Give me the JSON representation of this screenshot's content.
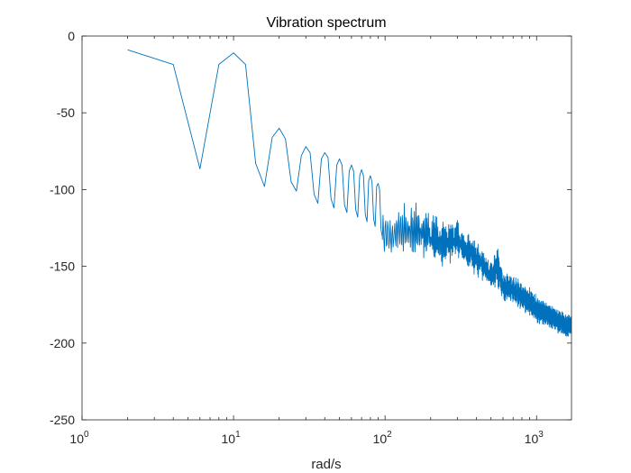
{
  "chart_data": {
    "type": "line",
    "title": "Vibration spectrum",
    "xlabel": "rad/s",
    "ylabel": "",
    "xscale": "log",
    "xlim": [
      1,
      1700
    ],
    "ylim": [
      -250,
      0
    ],
    "grid": false,
    "box": true,
    "legend": "none",
    "colors": {
      "line": "#0072BD",
      "axes": "#262626",
      "background": "#ffffff"
    },
    "xticks": [
      {
        "value": 1,
        "base": "10",
        "exp": "0"
      },
      {
        "value": 10,
        "base": "10",
        "exp": "1"
      },
      {
        "value": 100,
        "base": "10",
        "exp": "2"
      },
      {
        "value": 1000,
        "base": "10",
        "exp": "3"
      }
    ],
    "yticks": [
      {
        "value": 0,
        "label": "0"
      },
      {
        "value": -50,
        "label": "-50"
      },
      {
        "value": -100,
        "label": "-100"
      },
      {
        "value": -150,
        "label": "-150"
      },
      {
        "value": -200,
        "label": "-200"
      },
      {
        "value": -250,
        "label": "-250"
      }
    ],
    "series": [
      {
        "points": [
          [
            2,
            -9
          ],
          [
            4,
            -18.5
          ],
          [
            6,
            -86.5
          ],
          [
            8,
            -18.5
          ],
          [
            10,
            -11
          ],
          [
            12,
            -18.5
          ],
          [
            14,
            -83
          ],
          [
            16,
            -98
          ],
          [
            18,
            -66
          ],
          [
            20,
            -60
          ],
          [
            22,
            -67
          ],
          [
            24,
            -95
          ],
          [
            26,
            -101
          ],
          [
            28,
            -78
          ],
          [
            30,
            -72
          ],
          [
            32,
            -76
          ],
          [
            34,
            -103
          ],
          [
            36,
            -109
          ],
          [
            38,
            -80
          ],
          [
            40,
            -76
          ],
          [
            42,
            -79
          ],
          [
            44,
            -106
          ],
          [
            46,
            -112
          ],
          [
            48,
            -84
          ],
          [
            50,
            -80
          ],
          [
            52,
            -84
          ],
          [
            54,
            -110
          ],
          [
            56,
            -115
          ],
          [
            58,
            -88
          ],
          [
            60,
            -84
          ],
          [
            62,
            -88
          ],
          [
            64,
            -113
          ],
          [
            66,
            -118
          ],
          [
            68,
            -91
          ],
          [
            70,
            -87
          ],
          [
            72,
            -91
          ],
          [
            74,
            -116
          ],
          [
            76,
            -121
          ],
          [
            78,
            -94
          ],
          [
            80,
            -91
          ],
          [
            82,
            -95
          ],
          [
            84,
            -119
          ],
          [
            86,
            -124
          ],
          [
            88,
            -98
          ],
          [
            90,
            -96
          ],
          [
            92,
            -100
          ],
          [
            94,
            -126
          ],
          [
            96,
            -131
          ]
        ],
        "noise_segment": {
          "x_start": 96,
          "x_end": 1700,
          "trend": [
            [
              96,
              -128
            ],
            [
              110,
              -132
            ],
            [
              130,
              -126
            ],
            [
              160,
              -127
            ],
            [
              200,
              -130
            ],
            [
              240,
              -136
            ],
            [
              300,
              -132
            ],
            [
              350,
              -140
            ],
            [
              420,
              -147
            ],
            [
              500,
              -156
            ],
            [
              550,
              -150
            ],
            [
              600,
              -163
            ],
            [
              700,
              -165
            ],
            [
              800,
              -170
            ],
            [
              900,
              -173
            ],
            [
              1000,
              -178
            ],
            [
              1200,
              -182
            ],
            [
              1400,
              -186
            ],
            [
              1600,
              -189
            ],
            [
              1700,
              -188
            ]
          ],
          "envelope": [
            [
              96,
              18
            ],
            [
              120,
              28
            ],
            [
              160,
              30
            ],
            [
              200,
              26
            ],
            [
              260,
              24
            ],
            [
              300,
              20
            ],
            [
              400,
              18
            ],
            [
              500,
              14
            ],
            [
              550,
              22
            ],
            [
              600,
              16
            ],
            [
              800,
              14
            ],
            [
              1000,
              14
            ],
            [
              1400,
              12
            ],
            [
              1700,
              12
            ]
          ]
        }
      }
    ]
  }
}
